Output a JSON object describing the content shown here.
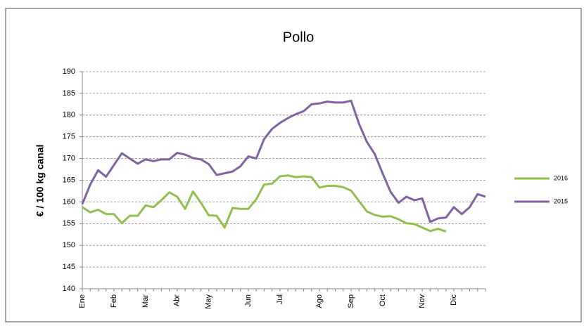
{
  "chart_data": {
    "type": "line",
    "title": "Pollo",
    "ylabel": "€ / 100 kg canal",
    "categories": [
      "Ene",
      null,
      null,
      null,
      "Feb",
      null,
      null,
      null,
      "Mar",
      null,
      null,
      null,
      "Abr",
      null,
      null,
      null,
      "May",
      null,
      null,
      null,
      null,
      "Jun",
      null,
      null,
      null,
      "Jul",
      null,
      null,
      null,
      null,
      "Ago",
      null,
      null,
      null,
      "Sep",
      null,
      null,
      null,
      "Oct",
      null,
      null,
      null,
      null,
      "Nov",
      null,
      null,
      null,
      "Dic",
      null,
      null,
      null,
      null
    ],
    "series": [
      {
        "name": "2016",
        "color": "#92c050",
        "values": [
          158.8,
          157.6,
          158.2,
          157.2,
          157.2,
          155.1,
          156.8,
          156.8,
          159.2,
          158.8,
          160.4,
          162.2,
          161.2,
          158.4,
          162.4,
          159.8,
          156.9,
          156.8,
          154.1,
          158.6,
          158.4,
          158.4,
          160.6,
          164,
          164.2,
          165.9,
          166.1,
          165.7,
          165.9,
          165.7,
          163.3,
          163.7,
          163.7,
          163.4,
          162.6,
          160.2,
          157.8,
          157,
          156.6,
          156.7,
          156,
          155.1,
          154.9,
          154.1,
          153.3,
          153.8,
          153.2,
          null,
          null,
          null,
          null,
          null
        ]
      },
      {
        "name": "2015",
        "color": "#8064a2",
        "values": [
          159.5,
          164,
          167.3,
          165.8,
          168.5,
          171.2,
          170,
          168.8,
          169.8,
          169.4,
          169.8,
          169.8,
          171.3,
          170.9,
          170.1,
          169.8,
          168.7,
          166.2,
          166.6,
          167,
          168.2,
          170.5,
          170,
          174.5,
          176.8,
          178.2,
          179.3,
          180.2,
          180.9,
          182.5,
          182.7,
          183.1,
          182.9,
          182.9,
          183.3,
          178,
          173.8,
          171,
          166.5,
          162.3,
          159.8,
          161.2,
          160.4,
          160.8,
          155.4,
          156.2,
          156.4,
          158.8,
          157.2,
          158.8,
          161.8,
          161.2
        ]
      }
    ],
    "ylim": [
      140,
      190
    ],
    "yticks": [
      140,
      145,
      150,
      155,
      160,
      165,
      170,
      175,
      180,
      185,
      190
    ],
    "grid": true,
    "legend": "right"
  }
}
